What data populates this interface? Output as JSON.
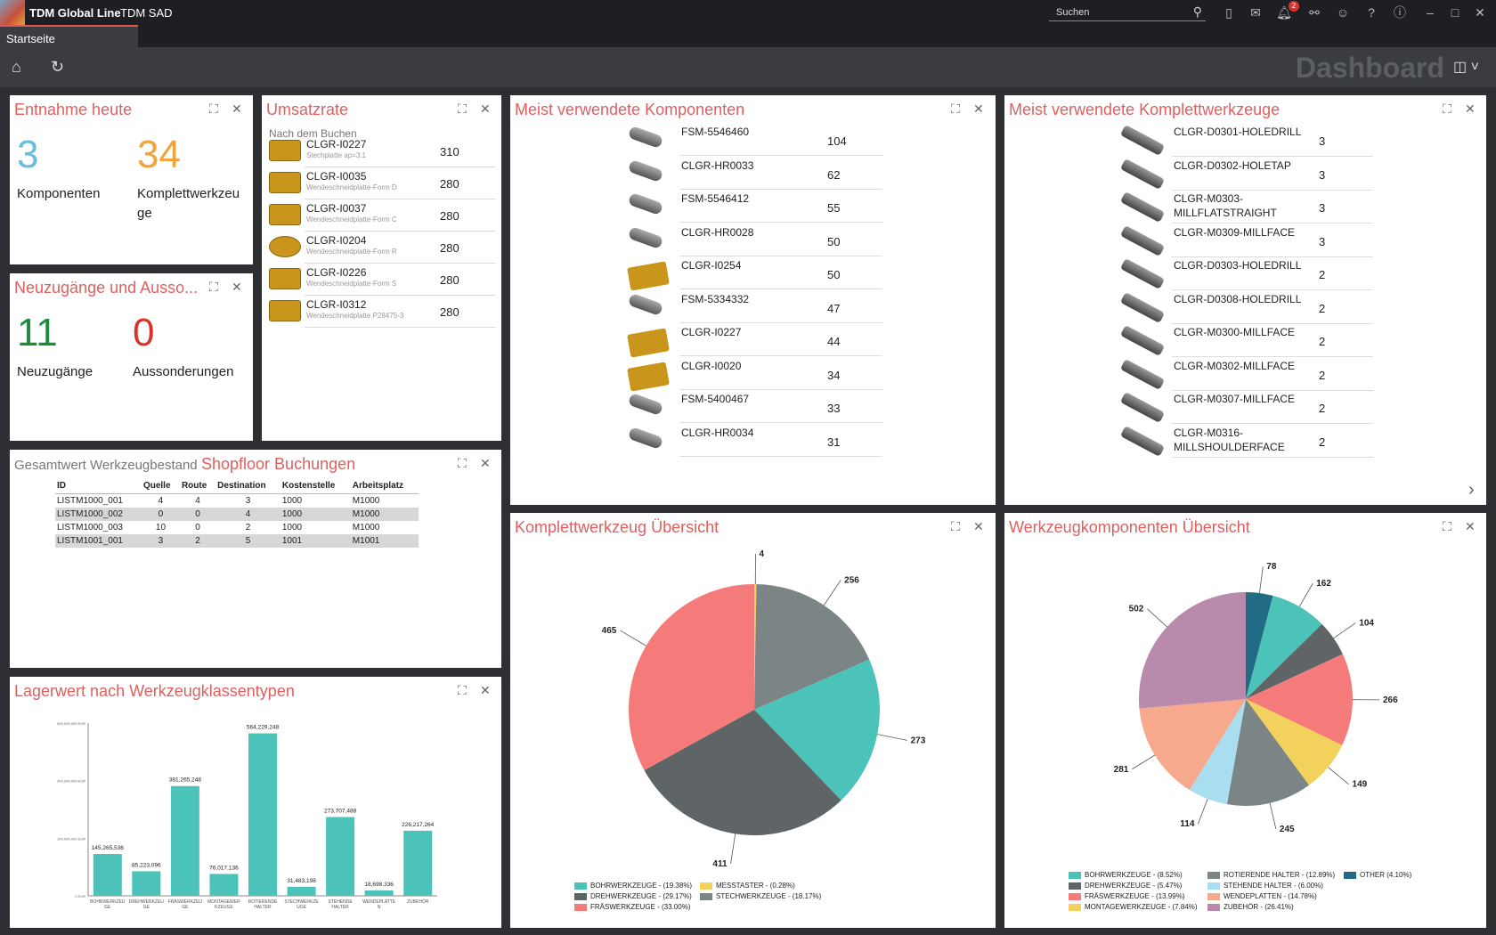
{
  "app": {
    "brand": "TDM Global Line",
    "module": "TDM SAD",
    "logo_text": "TDM"
  },
  "search": {
    "placeholder": "Suchen"
  },
  "notifications": {
    "count": "2"
  },
  "tabs": [
    {
      "label": "Startseite"
    }
  ],
  "toolbar": {
    "title": "Dashboard"
  },
  "entnahme": {
    "title": "Entnahme heute",
    "komponenten_value": "3",
    "komponenten_label": "Komponenten",
    "kwz_value": "34",
    "kwz_label1": "Komplettwerkzeu",
    "kwz_label2": "ge"
  },
  "neuzugaenge": {
    "title": "Neuzugänge und Ausso...",
    "neu_value": "11",
    "neu_label": "Neuzugänge",
    "aus_value": "0",
    "aus_label": "Aussonderungen"
  },
  "umsatz": {
    "title": "Umsatzrate",
    "subtitle": "Nach dem Buchen",
    "rows": [
      {
        "id": "CLGR-I0227",
        "desc": "Stechplatte ap=3.1",
        "value": "310"
      },
      {
        "id": "CLGR-I0035",
        "desc": "Wendeschneidplatte-Form D",
        "value": "280"
      },
      {
        "id": "CLGR-I0037",
        "desc": "Wendeschneidplatte-Form C",
        "value": "280"
      },
      {
        "id": "CLGR-I0204",
        "desc": "Wendeschneidplatte-Form R",
        "value": "280"
      },
      {
        "id": "CLGR-I0226",
        "desc": "Wendeschneidplatte-Form S",
        "value": "280"
      },
      {
        "id": "CLGR-I0312",
        "desc": "Wendeschneidplatte P28475-3",
        "value": "280"
      }
    ]
  },
  "gesamtwert": {
    "title": "Gesamtwert Werkzeugbestand",
    "title2": "Shopfloor Buchungen",
    "headers": [
      "ID",
      "Quelle",
      "Route",
      "Destination",
      "Kostenstelle",
      "Arbeitsplatz"
    ],
    "rows": [
      [
        "LISTM1000_001",
        "4",
        "4",
        "3",
        "1000",
        "M1000"
      ],
      [
        "LISTM1000_002",
        "0",
        "0",
        "4",
        "1000",
        "M1000"
      ],
      [
        "LISTM1000_003",
        "10",
        "0",
        "2",
        "1000",
        "M1000"
      ],
      [
        "LISTM1001_001",
        "3",
        "2",
        "5",
        "1001",
        "M1001"
      ]
    ]
  },
  "komponenten": {
    "title": "Meist verwendete Komponenten",
    "rows": [
      {
        "id": "FSM-5546460",
        "value": "104"
      },
      {
        "id": "CLGR-HR0033",
        "value": "62"
      },
      {
        "id": "FSM-5546412",
        "value": "55"
      },
      {
        "id": "CLGR-HR0028",
        "value": "50"
      },
      {
        "id": "CLGR-I0254",
        "value": "50"
      },
      {
        "id": "FSM-5334332",
        "value": "47"
      },
      {
        "id": "CLGR-I0227",
        "value": "44"
      },
      {
        "id": "CLGR-I0020",
        "value": "34"
      },
      {
        "id": "FSM-5400467",
        "value": "33"
      },
      {
        "id": "CLGR-HR0034",
        "value": "31"
      }
    ]
  },
  "komplett": {
    "title": "Meist verwendete Komplettwerkzeuge",
    "rows": [
      {
        "id": "CLGR-D0301-HOLEDRILL",
        "id2": "",
        "value": "3"
      },
      {
        "id": "CLGR-D0302-HOLETAP",
        "id2": "",
        "value": "3"
      },
      {
        "id": "CLGR-M0303-",
        "id2": "MILLFLATSTRAIGHT",
        "value": "3"
      },
      {
        "id": "CLGR-M0309-MILLFACE",
        "id2": "",
        "value": "3"
      },
      {
        "id": "CLGR-D0303-HOLEDRILL",
        "id2": "",
        "value": "2"
      },
      {
        "id": "CLGR-D0308-HOLEDRILL",
        "id2": "",
        "value": "2"
      },
      {
        "id": "CLGR-M0300-MILLFACE",
        "id2": "",
        "value": "2"
      },
      {
        "id": "CLGR-M0302-MILLFACE",
        "id2": "",
        "value": "2"
      },
      {
        "id": "CLGR-M0307-MILLFACE",
        "id2": "",
        "value": "2"
      },
      {
        "id": "CLGR-M0316-",
        "id2": "MILLSHOULDERFACE",
        "value": "2"
      }
    ]
  },
  "colors": {
    "teal": "#4cc3b8",
    "dark": "#5f6466",
    "red": "#f47b79",
    "yellow": "#f2d15c",
    "gray": "#7c8585",
    "rose": "#e05f5f",
    "orange": "#f2a33a",
    "blue": "#6bbcdf",
    "green": "#1f8a3a"
  },
  "chart_data": [
    {
      "type": "bar",
      "title": "Lagerwert nach Werkzeugklassentypen",
      "categories": [
        "BOHRWERKZEU GE",
        "DREHWERKZEU GE",
        "FRÄSWERKZEU GE",
        "MONTAGEWER KZEUGE",
        "ROTIERENDE HALTER",
        "STECHWERKZE UGE",
        "STEHENDE HALTER",
        "WENDEPLATTE N",
        "ZUBEHÖR"
      ],
      "values": [
        145265536,
        85223096,
        381265248,
        76017136,
        564229248,
        31483198,
        273707488,
        18698336,
        226217264
      ],
      "data_labels": [
        "145,265,536",
        "85,223,096",
        "381,265,248",
        "76,017,136",
        "564,229,248",
        "31,483,198",
        "273,707,488",
        "18,698,336",
        "226,217,264"
      ],
      "ylim": [
        0,
        600000000
      ],
      "ytick_labels": [
        "0 EUR",
        "200,000,000 EUR",
        "400,000,000 EUR",
        "600,000,000 EUR"
      ],
      "color": "#4cc3b8"
    },
    {
      "type": "pie",
      "title": "Komplettwerkzeug Übersicht",
      "slices": [
        {
          "name": "BOHRWERKZEUGE - (19.38%)",
          "value": 273,
          "color": "#4cc3b8"
        },
        {
          "name": "DREHWERKZEUGE - (29.17%)",
          "value": 411,
          "color": "#5f6466"
        },
        {
          "name": "FRÄSWERKZEUGE - (33.00%)",
          "value": 465,
          "color": "#f47b79"
        },
        {
          "name": "MESSTASTER - (0.28%)",
          "value": 4,
          "color": "#f2d15c"
        },
        {
          "name": "STECHWERKZEUGE - (18.17%)",
          "value": 256,
          "color": "#7c8585"
        }
      ]
    },
    {
      "type": "pie",
      "title": "Werkzeugkomponenten Übersicht",
      "slices": [
        {
          "name": "BOHRWERKZEUGE - (8.52%)",
          "value": 162,
          "color": "#4cc3b8"
        },
        {
          "name": "DREHWERKZEUGE - (5.47%)",
          "value": 104,
          "color": "#5f6466"
        },
        {
          "name": "FRÄSWERKZEUGE - (13.99%)",
          "value": 266,
          "color": "#f47b79"
        },
        {
          "name": "MONTAGEWERKZEUGE - (7.84%)",
          "value": 149,
          "color": "#f2d15c"
        },
        {
          "name": "ROTIERENDE HALTER - (12.89%)",
          "value": 245,
          "color": "#7c8585"
        },
        {
          "name": "STEHENDE HALTER - (6.00%)",
          "value": 114,
          "color": "#a8def0"
        },
        {
          "name": "WENDEPLATTEN - (14.78%)",
          "value": 281,
          "color": "#f6a98c"
        },
        {
          "name": "ZUBEHÖR - (26.41%)",
          "value": 502,
          "color": "#b98aab"
        },
        {
          "name": "OTHER (4.10%)",
          "value": 78,
          "color": "#226b84"
        }
      ]
    }
  ]
}
